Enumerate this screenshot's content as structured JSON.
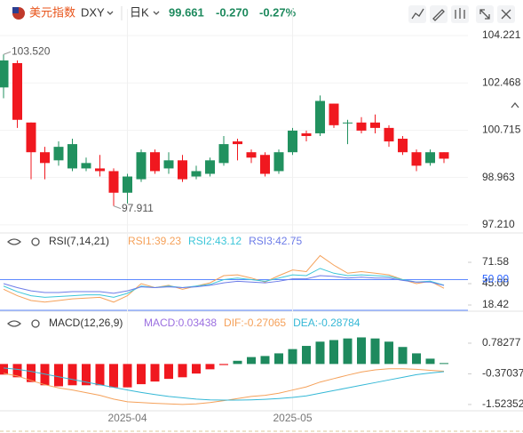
{
  "header": {
    "name": "美元指数",
    "symbol": "DXY",
    "period": "日K",
    "price": "99.661",
    "change": "-0.270",
    "change_pct": "-0.27%"
  },
  "chart_data": [
    {
      "type": "candlestick",
      "up_color": "#21915f",
      "down_color": "#f0181f",
      "categories": [
        null,
        null,
        null,
        null,
        null,
        null,
        null,
        null,
        null,
        "2025-04",
        null,
        null,
        null,
        null,
        null,
        null,
        null,
        null,
        null,
        null,
        null,
        "2025-05",
        null,
        null,
        null,
        null,
        null,
        null,
        null,
        null,
        null,
        null,
        null
      ],
      "open": [
        102.3,
        103.2,
        101.0,
        99.9,
        99.6,
        99.3,
        99.3,
        99.3,
        99.2,
        98.4,
        98.9,
        99.9,
        99.3,
        99.6,
        99.0,
        99.1,
        99.5,
        100.3,
        99.9,
        99.8,
        99.2,
        99.9,
        100.6,
        100.6,
        101.7,
        101.0,
        101.0,
        101.0,
        100.8,
        100.4,
        99.9,
        99.5,
        99.9
      ],
      "high": [
        103.52,
        103.3,
        101.0,
        100.1,
        100.3,
        100.4,
        99.7,
        99.8,
        99.3,
        99.1,
        100.0,
        100.0,
        99.9,
        99.8,
        99.4,
        99.7,
        100.5,
        100.4,
        100.0,
        99.9,
        100.0,
        100.8,
        100.7,
        102.0,
        101.7,
        101.1,
        101.2,
        101.3,
        100.9,
        100.5,
        100.0,
        100.0,
        99.9
      ],
      "low": [
        101.9,
        100.8,
        98.9,
        98.9,
        99.4,
        99.2,
        99.2,
        99.0,
        97.911,
        98.0,
        98.8,
        99.1,
        99.1,
        98.8,
        98.9,
        99.0,
        99.4,
        99.6,
        99.5,
        99.0,
        99.1,
        99.8,
        100.3,
        100.5,
        100.8,
        100.2,
        100.6,
        100.6,
        100.1,
        99.8,
        99.2,
        99.4,
        99.5
      ],
      "close": [
        103.3,
        101.1,
        99.9,
        99.5,
        100.1,
        100.2,
        99.5,
        99.2,
        98.4,
        99.0,
        99.9,
        99.2,
        99.6,
        98.9,
        99.2,
        99.6,
        100.2,
        100.2,
        99.7,
        99.1,
        99.9,
        100.7,
        100.5,
        101.8,
        100.9,
        101.0,
        100.7,
        100.8,
        100.3,
        99.9,
        99.4,
        99.9,
        99.661
      ],
      "ylim": [
        96.91,
        104.55
      ],
      "yticks": [
        104.221,
        102.468,
        100.715,
        98.963,
        {
          "value": 97.21,
          "label": "97.210"
        }
      ],
      "annotations": [
        {
          "value": 103.52,
          "label": "103.520"
        },
        {
          "value": 97.911,
          "label": "97.911"
        }
      ]
    },
    {
      "type": "line",
      "title": "RSI(7,14,21)",
      "ylim": [
        10.7,
        86
      ],
      "yticks": [
        71.58,
        {
          "value": 45,
          "label": "45.00"
        },
        18.42
      ],
      "levels": [
        {
          "value": 50,
          "label": "50.00"
        }
      ],
      "series": [
        {
          "name": "RSI1:39.23",
          "color": "#f5a15a",
          "values": [
            38,
            30,
            24,
            22,
            24,
            26,
            27,
            28,
            22,
            30,
            45,
            40,
            43,
            38,
            42,
            46,
            55,
            56,
            52,
            47,
            55,
            62,
            60,
            80,
            68,
            58,
            60,
            58,
            56,
            50,
            45,
            48,
            39.23
          ]
        },
        {
          "name": "RSI2:43.12",
          "color": "#3cc6d9",
          "values": [
            42,
            35,
            30,
            28,
            29,
            30,
            31,
            31,
            28,
            33,
            42,
            40,
            42,
            40,
            42,
            44,
            50,
            52,
            50,
            48,
            52,
            56,
            55,
            64,
            58,
            55,
            56,
            55,
            54,
            50,
            47,
            48,
            43.12
          ]
        },
        {
          "name": "RSI3:42.75",
          "color": "#6d7ce8",
          "values": [
            45,
            40,
            36,
            34,
            34,
            35,
            35,
            35,
            33,
            36,
            41,
            40,
            41,
            40,
            41,
            43,
            46,
            48,
            47,
            46,
            48,
            51,
            51,
            55,
            54,
            52,
            53,
            52,
            52,
            49,
            47,
            47,
            42.75
          ]
        }
      ]
    },
    {
      "type": "combo",
      "title": "MACD(12,26,9)",
      "ylim": [
        -1.76,
        1.25
      ],
      "yticks": [
        0.78277,
        -0.37037,
        -1.52352
      ],
      "series": [
        {
          "name": "MACD:0.03438",
          "kind": "bar",
          "color": "#9b6fe0",
          "up_color": "#1e8a5e",
          "down_color": "#f0181f",
          "values": [
            -0.4,
            -0.5,
            -0.68,
            -0.8,
            -0.84,
            -0.8,
            -0.8,
            -0.8,
            -0.88,
            -0.88,
            -0.76,
            -0.66,
            -0.56,
            -0.5,
            -0.36,
            -0.2,
            -0.04,
            0.12,
            0.26,
            0.3,
            0.4,
            0.56,
            0.68,
            0.84,
            0.9,
            0.96,
            1.0,
            0.96,
            0.84,
            0.64,
            0.4,
            0.2,
            0.03438
          ]
        },
        {
          "name": "DIF:-0.27065",
          "kind": "line",
          "color": "#f5a15a",
          "values": [
            -0.35,
            -0.45,
            -0.62,
            -0.78,
            -0.9,
            -0.98,
            -1.08,
            -1.18,
            -1.32,
            -1.42,
            -1.45,
            -1.48,
            -1.5,
            -1.52,
            -1.5,
            -1.45,
            -1.38,
            -1.3,
            -1.22,
            -1.18,
            -1.1,
            -0.98,
            -0.86,
            -0.68,
            -0.55,
            -0.42,
            -0.3,
            -0.22,
            -0.18,
            -0.18,
            -0.2,
            -0.24,
            -0.27065
          ]
        },
        {
          "name": "DEA:-0.28784",
          "kind": "line",
          "color": "#35b8d6",
          "values": [
            -0.15,
            -0.2,
            -0.28,
            -0.38,
            -0.48,
            -0.58,
            -0.68,
            -0.78,
            -0.88,
            -0.98,
            -1.07,
            -1.15,
            -1.22,
            -1.27,
            -1.32,
            -1.35,
            -1.36,
            -1.36,
            -1.35,
            -1.33,
            -1.3,
            -1.26,
            -1.2,
            -1.1,
            -1.0,
            -0.9,
            -0.8,
            -0.7,
            -0.6,
            -0.5,
            -0.4,
            -0.34,
            -0.28784
          ]
        }
      ]
    }
  ]
}
